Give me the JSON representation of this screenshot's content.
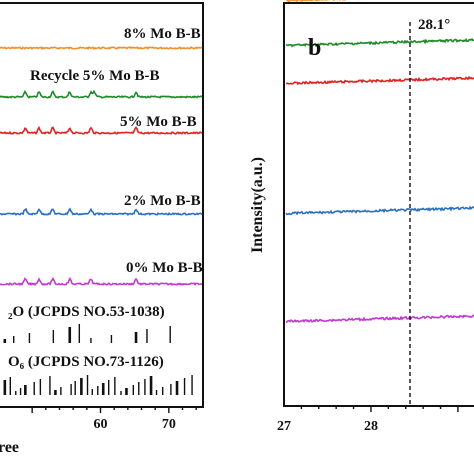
{
  "chart_data": [
    {
      "type": "line",
      "panel_label": "",
      "xlabel_visible": "ree",
      "ylabel": "",
      "xlim": [
        45,
        75
      ],
      "xticks": [
        60,
        70
      ],
      "series": [
        {
          "name": "8% Mo B-B",
          "color": "#f0902a",
          "peaks": []
        },
        {
          "name": "Recycle 5% Mo B-B",
          "color": "#1f8a2a",
          "peaks": [
            49,
            51,
            53,
            55.5,
            58.6,
            59.1,
            65.2
          ]
        },
        {
          "name": "5% Mo B-B",
          "color": "#e02222",
          "peaks": [
            49,
            51,
            53,
            55.5,
            58.6,
            65.2
          ]
        },
        {
          "name": "2% Mo B-B",
          "color": "#2a6fc0",
          "peaks": [
            49,
            51,
            53,
            55.5,
            58.6,
            65.2
          ]
        },
        {
          "name": "0% Mo B-B",
          "color": "#c03ad0",
          "peaks": [
            49,
            51,
            53,
            55.5,
            58.6,
            65.2
          ]
        }
      ],
      "reference_patterns": [
        {
          "label_visible": "₂O (JCPDS NO.53-1038)",
          "positions": [
            46,
            47.3,
            49.6,
            53.1,
            55.5,
            56.9,
            58.6,
            61.6,
            65.2,
            66.8,
            70.2
          ]
        },
        {
          "label_visible": "O₆ (JCPDS NO.73-1126)",
          "positions": [
            46,
            46.8,
            47.6,
            48.3,
            49,
            50.3,
            51.2,
            52.6,
            53.4,
            54.2,
            55.7,
            56.3,
            57.2,
            58.1,
            58.8,
            59.6,
            60.4,
            61.2,
            62.1,
            63,
            63.8,
            64.8,
            65.6,
            66.5,
            67.4,
            68.2,
            69.1,
            70.3,
            71.2,
            72.3,
            73.4
          ]
        }
      ]
    },
    {
      "type": "line",
      "panel_label": "b",
      "ylabel": "Intensity(a.u.)",
      "xlim": [
        27,
        29.3
      ],
      "xticks": [
        27,
        28
      ],
      "reference_line": {
        "x": 28.1,
        "label": "28.1°"
      },
      "series": [
        {
          "name": "8% Mo B-B",
          "color": "#f0902a",
          "peak_x": 28.2
        },
        {
          "name": "Recycle 5% Mo B-B",
          "color": "#1f8a2a",
          "peak_x": 28.25
        },
        {
          "name": "5% Mo B-B",
          "color": "#e02222",
          "peak_x": 28.25
        },
        {
          "name": "2% Mo B-B",
          "color": "#2a6fc0",
          "peak_x": 28.12
        },
        {
          "name": "0% Mo B-B",
          "color": "#c03ad0",
          "peak_x": 28.12
        }
      ]
    }
  ]
}
